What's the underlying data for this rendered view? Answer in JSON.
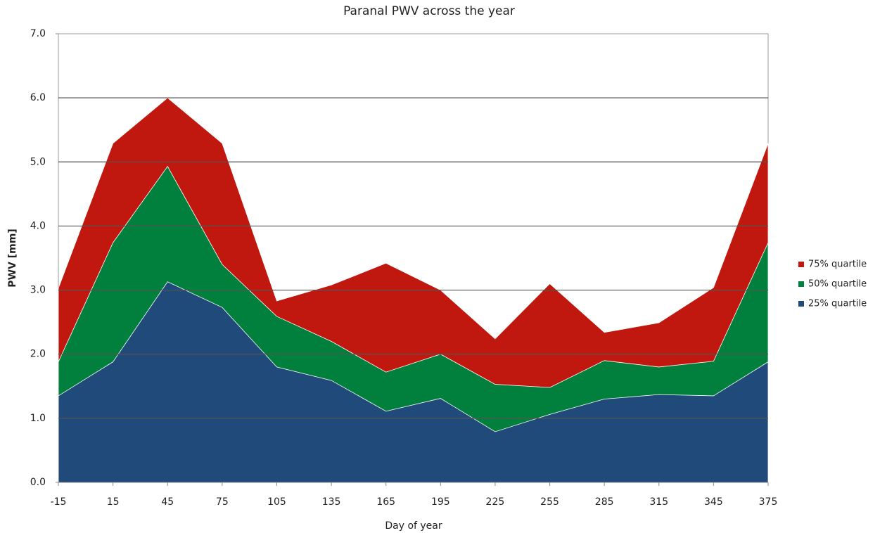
{
  "chart_data": {
    "type": "area",
    "title": "Paranal PWV across the year",
    "x_label": "Day of year",
    "y_label": "PWV [mm]",
    "x": [
      -15,
      15,
      45,
      75,
      105,
      135,
      165,
      195,
      225,
      255,
      285,
      315,
      345,
      375
    ],
    "series": [
      {
        "name": "75% quartile",
        "color": "#c0180f",
        "values": [
          3.03,
          5.29,
          6.0,
          5.29,
          2.83,
          3.08,
          3.42,
          3.0,
          2.24,
          3.1,
          2.34,
          2.49,
          3.04,
          5.29
        ]
      },
      {
        "name": "50% quartile",
        "color": "#00803c",
        "values": [
          1.88,
          3.74,
          4.93,
          3.4,
          2.59,
          2.2,
          1.72,
          2.0,
          1.53,
          1.48,
          1.9,
          1.8,
          1.89,
          3.74
        ]
      },
      {
        "name": "25% quartile",
        "color": "#1f4a7a",
        "values": [
          1.35,
          1.88,
          3.13,
          2.73,
          1.8,
          1.59,
          1.11,
          1.31,
          0.79,
          1.06,
          1.3,
          1.37,
          1.35,
          1.88
        ]
      }
    ],
    "xlim": [
      -15,
      375
    ],
    "xticks": [
      -15,
      15,
      45,
      75,
      105,
      135,
      165,
      195,
      225,
      255,
      285,
      315,
      345,
      375
    ],
    "ylim": [
      0,
      7
    ],
    "yticks": [
      {
        "value": 0,
        "label": "0.0"
      },
      {
        "value": 1,
        "label": "1.0"
      },
      {
        "value": 2,
        "label": "2.0"
      },
      {
        "value": 3,
        "label": "3.0"
      },
      {
        "value": 4,
        "label": "4.0"
      },
      {
        "value": 5,
        "label": "5.0"
      },
      {
        "value": 6,
        "label": "6.0"
      },
      {
        "value": 7,
        "label": "7.0"
      }
    ],
    "grid": true,
    "legend": "right"
  }
}
